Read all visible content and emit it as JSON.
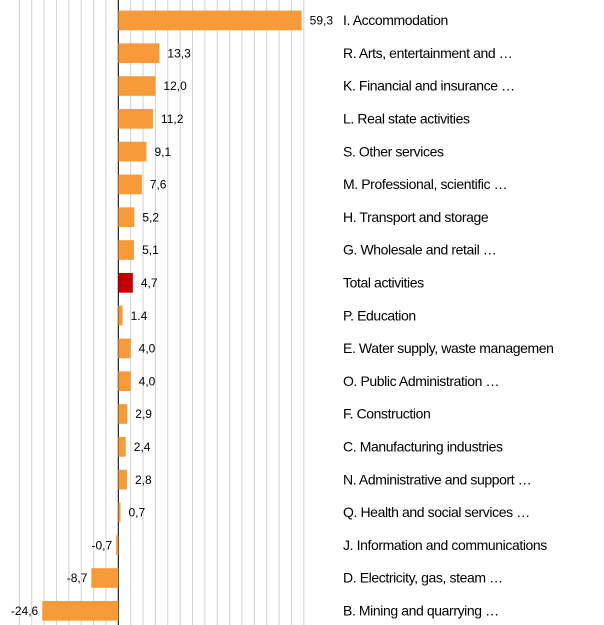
{
  "chart_data": {
    "type": "bar",
    "orientation": "horizontal",
    "categories": [
      "I. Accommodation",
      "R. Arts, entertainment and …",
      "K. Financial and insurance …",
      "L. Real state activities",
      "S. Other services",
      "M. Professional, scientific …",
      "H. Transport and storage",
      "G. Wholesale and retail …",
      "Total activities",
      "P. Education",
      "E. Water supply, waste managemen",
      "O. Public Administration …",
      "F. Construction",
      "C. Manufacturing industries",
      "N. Administrative and support …",
      "Q. Health and social services …",
      "J. Information and communications",
      "D. Electricity, gas, steam …",
      "B. Mining and quarrying …"
    ],
    "values": [
      59.3,
      13.3,
      12.0,
      11.2,
      9.1,
      7.6,
      5.2,
      5.1,
      4.7,
      1.4,
      4.0,
      4.0,
      2.9,
      2.4,
      2.8,
      0.7,
      -0.7,
      -8.7,
      -24.6
    ],
    "value_labels": [
      "59,3",
      "13,3",
      "12,0",
      "11,2",
      "9,1",
      "7,6",
      "5,2",
      "5,1",
      "4,7",
      "1.4",
      "4,0",
      "4,0",
      "2,9",
      "2,4",
      "2,8",
      "0,7",
      "-0,7",
      "-8,7",
      "-24,6"
    ],
    "colors": [
      "#f79a3a",
      "#f79a3a",
      "#f79a3a",
      "#f79a3a",
      "#f79a3a",
      "#f79a3a",
      "#f79a3a",
      "#f79a3a",
      "#c00000",
      "#f79a3a",
      "#f79a3a",
      "#f79a3a",
      "#f79a3a",
      "#f79a3a",
      "#f79a3a",
      "#f79a3a",
      "#f79a3a",
      "#f79a3a",
      "#f79a3a"
    ],
    "xlim": [
      -36,
      62
    ],
    "xticks": [
      -32,
      -28,
      -24,
      -20,
      -16,
      -12,
      -8,
      -4,
      0,
      4,
      8,
      12,
      16,
      20,
      24,
      28,
      32,
      36,
      40,
      44,
      48,
      52,
      56,
      60
    ],
    "grid": true
  }
}
